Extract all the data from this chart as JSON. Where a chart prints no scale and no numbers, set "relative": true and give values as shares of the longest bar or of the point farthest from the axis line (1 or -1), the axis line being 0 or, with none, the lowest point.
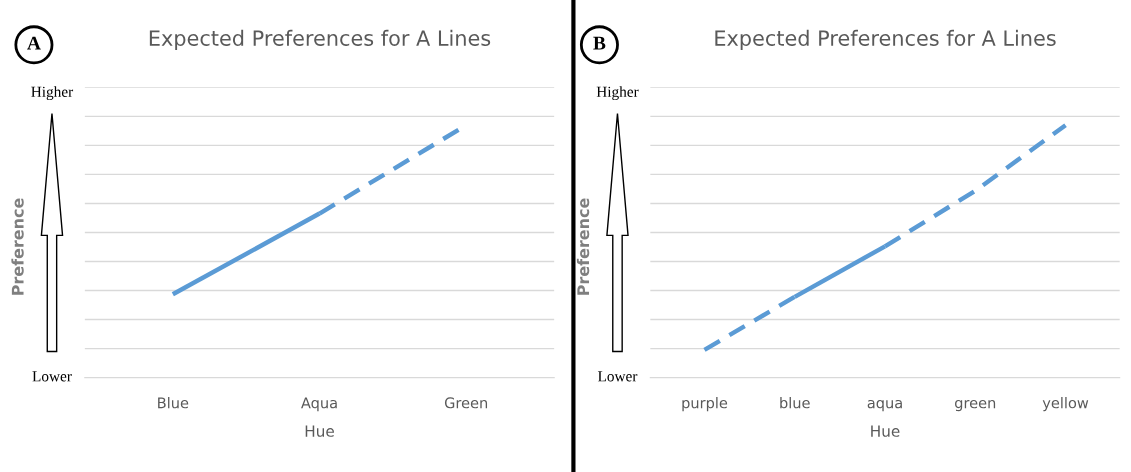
{
  "chart_data": [
    {
      "type": "line",
      "title": "Expected Preferences for A Lines",
      "xlabel": "Hue",
      "ylabel": "Preference",
      "relative": true,
      "grid": "y",
      "legend": false,
      "tick_labels": "x",
      "categories": [
        "Blue",
        "Aqua",
        "Green"
      ],
      "annotations": [
        "A",
        "Higher",
        "Lower"
      ],
      "series": [
        {
          "color": "#5b9bd5",
          "line_style": "solid",
          "values": [
            0.33,
            0.65,
            null
          ]
        },
        {
          "color": "#5b9bd5",
          "line_style": "dashed",
          "values": [
            null,
            0.65,
            1
          ]
        }
      ]
    },
    {
      "type": "line",
      "title": "Expected Preferences for A Lines",
      "xlabel": "Hue",
      "ylabel": "Preference",
      "relative": true,
      "grid": "y",
      "legend": false,
      "tick_labels": "x",
      "categories": [
        "purple",
        "blue",
        "aqua",
        "green",
        "yellow"
      ],
      "annotations": [
        "B",
        "Higher",
        "Lower"
      ],
      "series": [
        {
          "color": "#5b9bd5",
          "line_style": "dashed",
          "values": [
            0.11,
            0.32,
            null,
            null,
            null
          ]
        },
        {
          "color": "#5b9bd5",
          "line_style": "solid",
          "values": [
            null,
            0.32,
            0.52,
            null,
            null
          ]
        },
        {
          "color": "#5b9bd5",
          "line_style": "dashed",
          "values": [
            null,
            null,
            0.52,
            0.74,
            1
          ]
        }
      ]
    }
  ]
}
